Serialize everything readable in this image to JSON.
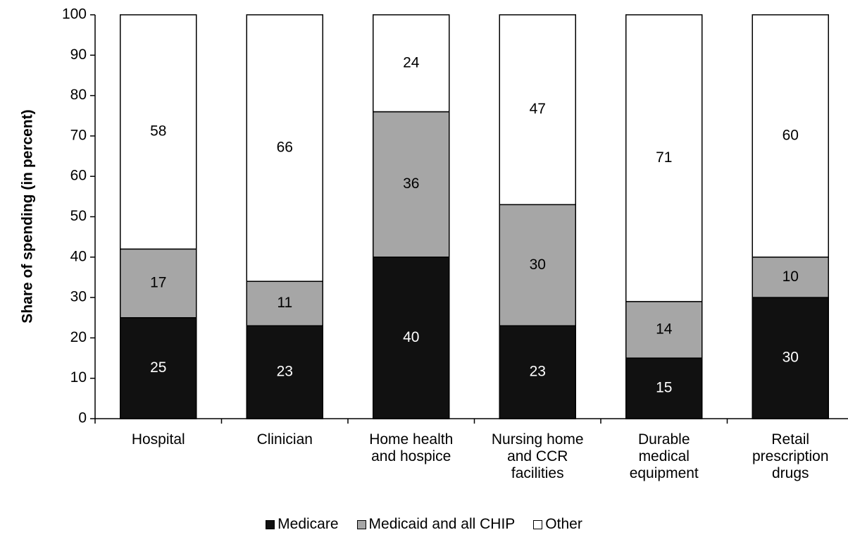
{
  "chart_data": {
    "type": "stacked_bar",
    "y_label": "Share of spending (in percent)",
    "categories": [
      "Hospital",
      "Clinician",
      "Home health\nand hospice",
      "Nursing home\nand CCR\nfacilities",
      "Durable\nmedical\nequipment",
      "Retail\nprescription\ndrugs"
    ],
    "series": [
      {
        "name": "Medicare",
        "color": "#111111",
        "label_color": "#ffffff",
        "values": [
          25,
          23,
          40,
          23,
          15,
          30
        ]
      },
      {
        "name": "Medicaid and all CHIP",
        "color": "#a6a6a6",
        "label_color": "#000000",
        "values": [
          17,
          11,
          36,
          30,
          14,
          10
        ]
      },
      {
        "name": "Other",
        "color": "#ffffff",
        "label_color": "#000000",
        "values": [
          58,
          66,
          24,
          47,
          71,
          60
        ]
      }
    ],
    "ylim": [
      0,
      100
    ],
    "yticks": [
      0,
      10,
      20,
      30,
      40,
      50,
      60,
      70,
      80,
      90,
      100
    ],
    "legend": "bottom"
  }
}
